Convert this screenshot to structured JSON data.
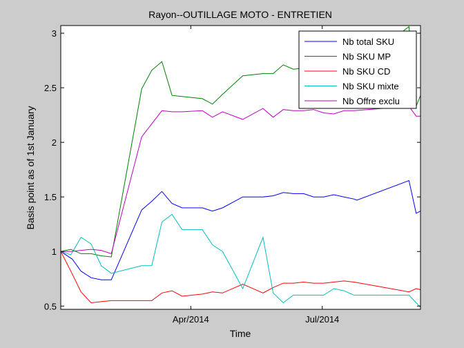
{
  "chart_data": {
    "type": "line",
    "title": "Rayon--OUTILLAGE MOTO - ENTRETIEN",
    "xlabel": "Time",
    "ylabel": "Basis point as of 1st January",
    "xlim": [
      "2014-01-01",
      "2014-09-07"
    ],
    "ylim": [
      0.47,
      3.07
    ],
    "xticks": [
      {
        "date": "2014-04-01",
        "label": "Apr/2014"
      },
      {
        "date": "2014-07-01",
        "label": "Jul/2014"
      }
    ],
    "yticks": [
      {
        "value": 0.5,
        "label": "0.5"
      },
      {
        "value": 1,
        "label": "1"
      },
      {
        "value": 1.5,
        "label": "1.5"
      },
      {
        "value": 2,
        "label": "2"
      },
      {
        "value": 2.5,
        "label": "2.5"
      },
      {
        "value": 3,
        "label": "3"
      }
    ],
    "grid": false,
    "legend_position": "top-right",
    "series": [
      {
        "name": "Nb total SKU",
        "color": "#0000ff",
        "points": [
          [
            "2014-01-01",
            1.0
          ],
          [
            "2014-01-09",
            0.93
          ],
          [
            "2014-01-15",
            0.82
          ],
          [
            "2014-01-22",
            0.76
          ],
          [
            "2014-01-29",
            0.74
          ],
          [
            "2014-02-05",
            0.74
          ],
          [
            "2014-02-26",
            1.38
          ],
          [
            "2014-03-05",
            1.46
          ],
          [
            "2014-03-12",
            1.55
          ],
          [
            "2014-03-19",
            1.44
          ],
          [
            "2014-03-26",
            1.4
          ],
          [
            "2014-04-09",
            1.4
          ],
          [
            "2014-04-16",
            1.37
          ],
          [
            "2014-04-23",
            1.4
          ],
          [
            "2014-05-07",
            1.5
          ],
          [
            "2014-05-21",
            1.5
          ],
          [
            "2014-05-28",
            1.51
          ],
          [
            "2014-06-04",
            1.54
          ],
          [
            "2014-06-11",
            1.53
          ],
          [
            "2014-06-18",
            1.53
          ],
          [
            "2014-06-25",
            1.5
          ],
          [
            "2014-07-02",
            1.5
          ],
          [
            "2014-07-09",
            1.52
          ],
          [
            "2014-07-16",
            1.5
          ],
          [
            "2014-07-23",
            1.48
          ],
          [
            "2014-07-25",
            1.47
          ],
          [
            "2014-08-30",
            1.65
          ],
          [
            "2014-09-04",
            1.35
          ],
          [
            "2014-09-07",
            1.37
          ]
        ]
      },
      {
        "name": "Nb SKU MP",
        "color": "#008000",
        "points": [
          [
            "2014-01-01",
            1.0
          ],
          [
            "2014-01-08",
            1.02
          ],
          [
            "2014-01-15",
            0.98
          ],
          [
            "2014-01-22",
            0.98
          ],
          [
            "2014-01-29",
            0.96
          ],
          [
            "2014-02-05",
            0.95
          ],
          [
            "2014-02-26",
            2.49
          ],
          [
            "2014-03-05",
            2.66
          ],
          [
            "2014-03-12",
            2.74
          ],
          [
            "2014-03-19",
            2.43
          ],
          [
            "2014-03-26",
            2.42
          ],
          [
            "2014-04-09",
            2.4
          ],
          [
            "2014-04-16",
            2.35
          ],
          [
            "2014-04-23",
            2.44
          ],
          [
            "2014-05-07",
            2.61
          ],
          [
            "2014-05-21",
            2.63
          ],
          [
            "2014-05-28",
            2.63
          ],
          [
            "2014-06-04",
            2.71
          ],
          [
            "2014-06-11",
            2.67
          ],
          [
            "2014-06-18",
            2.68
          ],
          [
            "2014-06-25",
            2.7
          ],
          [
            "2014-07-02",
            2.72
          ],
          [
            "2014-07-09",
            2.72
          ],
          [
            "2014-07-16",
            2.68
          ],
          [
            "2014-07-23",
            2.68
          ],
          [
            "2014-08-30",
            3.06
          ],
          [
            "2014-09-04",
            2.33
          ],
          [
            "2014-09-07",
            2.43
          ]
        ]
      },
      {
        "name": "Nb SKU CD",
        "color": "#ff0000",
        "points": [
          [
            "2014-01-01",
            1.0
          ],
          [
            "2014-01-08",
            0.82
          ],
          [
            "2014-01-15",
            0.63
          ],
          [
            "2014-01-22",
            0.53
          ],
          [
            "2014-01-29",
            0.54
          ],
          [
            "2014-02-05",
            0.55
          ],
          [
            "2014-02-26",
            0.55
          ],
          [
            "2014-03-05",
            0.55
          ],
          [
            "2014-03-12",
            0.62
          ],
          [
            "2014-03-19",
            0.64
          ],
          [
            "2014-03-26",
            0.59
          ],
          [
            "2014-04-09",
            0.61
          ],
          [
            "2014-04-16",
            0.63
          ],
          [
            "2014-04-23",
            0.62
          ],
          [
            "2014-05-07",
            0.7
          ],
          [
            "2014-05-21",
            0.62
          ],
          [
            "2014-05-28",
            0.67
          ],
          [
            "2014-06-04",
            0.71
          ],
          [
            "2014-06-11",
            0.71
          ],
          [
            "2014-06-18",
            0.72
          ],
          [
            "2014-06-25",
            0.71
          ],
          [
            "2014-07-02",
            0.71
          ],
          [
            "2014-07-09",
            0.72
          ],
          [
            "2014-07-16",
            0.73
          ],
          [
            "2014-07-23",
            0.72
          ],
          [
            "2014-08-30",
            0.63
          ],
          [
            "2014-09-04",
            0.66
          ],
          [
            "2014-09-07",
            0.65
          ]
        ]
      },
      {
        "name": "Nb SKU mixte",
        "color": "#00bfbf",
        "points": [
          [
            "2014-01-01",
            1.0
          ],
          [
            "2014-01-08",
            0.97
          ],
          [
            "2014-01-15",
            1.13
          ],
          [
            "2014-01-22",
            1.07
          ],
          [
            "2014-01-29",
            0.87
          ],
          [
            "2014-02-05",
            0.8
          ],
          [
            "2014-02-26",
            0.87
          ],
          [
            "2014-03-05",
            0.87
          ],
          [
            "2014-03-12",
            1.27
          ],
          [
            "2014-03-19",
            1.34
          ],
          [
            "2014-03-26",
            1.2
          ],
          [
            "2014-04-09",
            1.2
          ],
          [
            "2014-04-16",
            1.06
          ],
          [
            "2014-04-23",
            1.0
          ],
          [
            "2014-05-07",
            0.66
          ],
          [
            "2014-05-21",
            1.13
          ],
          [
            "2014-05-28",
            0.62
          ],
          [
            "2014-06-04",
            0.53
          ],
          [
            "2014-06-11",
            0.6
          ],
          [
            "2014-06-18",
            0.6
          ],
          [
            "2014-06-25",
            0.6
          ],
          [
            "2014-07-02",
            0.6
          ],
          [
            "2014-07-09",
            0.66
          ],
          [
            "2014-07-16",
            0.64
          ],
          [
            "2014-07-23",
            0.6
          ],
          [
            "2014-08-30",
            0.6
          ],
          [
            "2014-09-04",
            0.53
          ],
          [
            "2014-09-07",
            0.49
          ]
        ]
      },
      {
        "name": "Nb Offre exclu",
        "color": "#bf00bf",
        "points": [
          [
            "2014-01-01",
            1.0
          ],
          [
            "2014-01-08",
            1.0
          ],
          [
            "2014-01-15",
            1.01
          ],
          [
            "2014-01-22",
            1.02
          ],
          [
            "2014-01-29",
            1.01
          ],
          [
            "2014-02-05",
            0.98
          ],
          [
            "2014-02-26",
            2.05
          ],
          [
            "2014-03-05",
            2.17
          ],
          [
            "2014-03-12",
            2.29
          ],
          [
            "2014-03-19",
            2.28
          ],
          [
            "2014-03-26",
            2.28
          ],
          [
            "2014-04-09",
            2.29
          ],
          [
            "2014-04-16",
            2.23
          ],
          [
            "2014-04-23",
            2.28
          ],
          [
            "2014-05-07",
            2.21
          ],
          [
            "2014-05-21",
            2.31
          ],
          [
            "2014-05-28",
            2.23
          ],
          [
            "2014-06-04",
            2.3
          ],
          [
            "2014-06-11",
            2.29
          ],
          [
            "2014-06-18",
            2.29
          ],
          [
            "2014-06-25",
            2.3
          ],
          [
            "2014-07-02",
            2.27
          ],
          [
            "2014-07-09",
            2.26
          ],
          [
            "2014-07-16",
            2.29
          ],
          [
            "2014-07-23",
            2.29
          ],
          [
            "2014-08-30",
            2.33
          ],
          [
            "2014-09-04",
            2.24
          ],
          [
            "2014-09-07",
            2.24
          ]
        ]
      }
    ]
  }
}
